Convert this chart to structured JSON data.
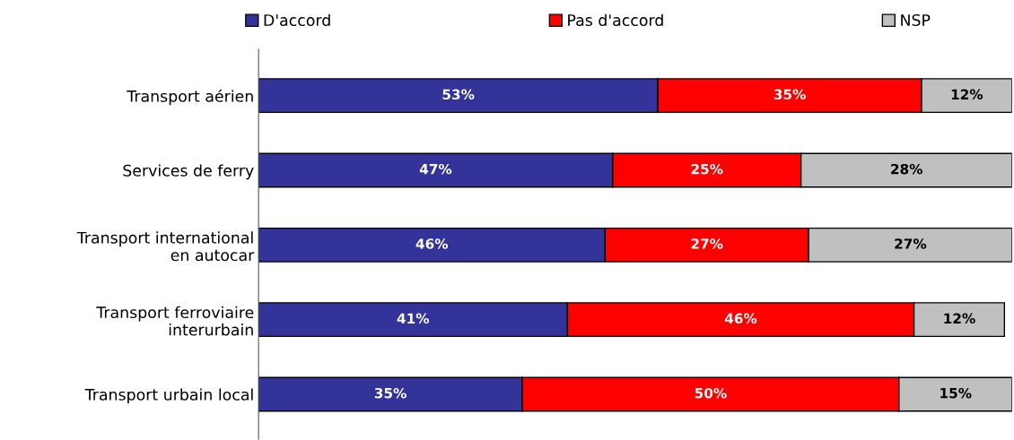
{
  "chart_data": {
    "type": "bar",
    "orientation": "horizontal",
    "stacked": true,
    "categories": [
      "Transport aérien",
      "Services de ferry",
      "Transport international\nen autocar",
      "Transport ferroviaire\ninterurbain",
      "Transport urbain local"
    ],
    "series": [
      {
        "name": "D'accord",
        "color": "#333399",
        "values": [
          53,
          47,
          46,
          41,
          35
        ],
        "value_labels": [
          "53%",
          "47%",
          "46%",
          "41%",
          "35%"
        ]
      },
      {
        "name": "Pas d'accord",
        "color": "#ff0000",
        "values": [
          35,
          25,
          27,
          46,
          50
        ],
        "value_labels": [
          "35%",
          "25%",
          "27%",
          "46%",
          "50%"
        ]
      },
      {
        "name": "NSP",
        "color": "#c0c0c0",
        "values": [
          12,
          28,
          27,
          12,
          15
        ],
        "value_labels": [
          "12%",
          "28%",
          "27%",
          "12%",
          "15%"
        ]
      }
    ],
    "xlim": [
      0,
      100
    ],
    "tick_labels": "y",
    "legend": "top",
    "grid": false
  }
}
